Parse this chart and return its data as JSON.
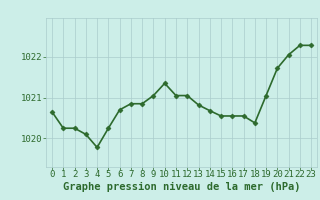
{
  "x": [
    0,
    1,
    2,
    3,
    4,
    5,
    6,
    7,
    8,
    9,
    10,
    11,
    12,
    13,
    14,
    15,
    16,
    17,
    18,
    19,
    20,
    21,
    22,
    23
  ],
  "y": [
    1020.65,
    1020.25,
    1020.25,
    1020.1,
    1019.78,
    1020.25,
    1020.7,
    1020.85,
    1020.85,
    1021.05,
    1021.35,
    1021.05,
    1021.05,
    1020.82,
    1020.68,
    1020.55,
    1020.55,
    1020.55,
    1020.38,
    1021.05,
    1021.72,
    1022.05,
    1022.28,
    1022.28
  ],
  "line_color": "#2d6a2d",
  "marker": "D",
  "markersize": 2.5,
  "background_color": "#cceee8",
  "grid_color": "#aacccc",
  "xlabel": "Graphe pression niveau de la mer (hPa)",
  "xlim": [
    -0.5,
    23.5
  ],
  "ylim": [
    1019.3,
    1022.95
  ],
  "linewidth": 1.2,
  "xlabel_fontsize": 7.5,
  "tick_fontsize": 6.5,
  "yticks": [
    1020,
    1021,
    1022
  ],
  "ytick_labels": [
    "1020",
    "1021",
    "1022"
  ]
}
